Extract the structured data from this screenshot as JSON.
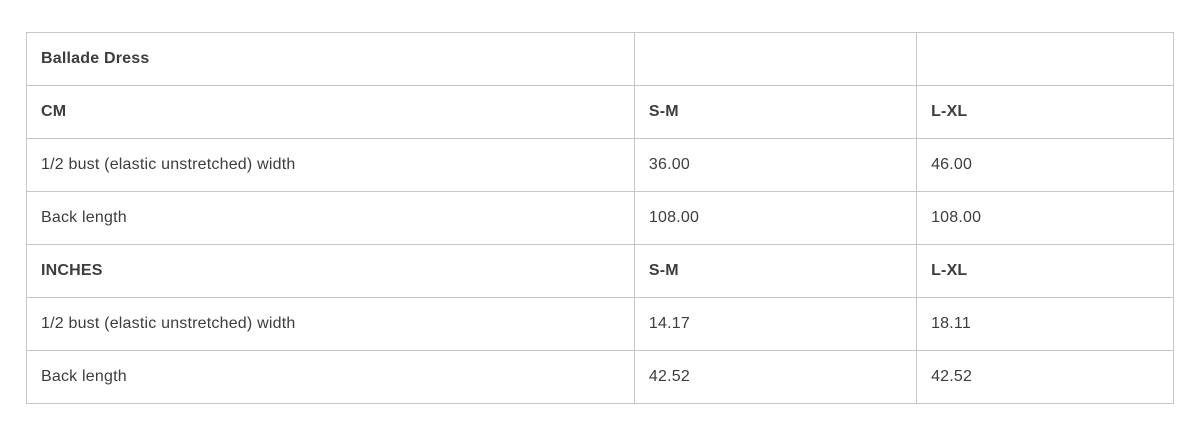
{
  "size_chart": {
    "title": "Ballade Dress",
    "sections": [
      {
        "unit": "CM",
        "size_headers": [
          "S-M",
          "L-XL"
        ],
        "rows": [
          {
            "label": "1/2 bust (elastic unstretched) width",
            "values": [
              "36.00",
              "46.00"
            ]
          },
          {
            "label": "Back length",
            "values": [
              "108.00",
              "108.00"
            ]
          }
        ]
      },
      {
        "unit": "INCHES",
        "size_headers": [
          "S-M",
          "L-XL"
        ],
        "rows": [
          {
            "label": "1/2 bust (elastic unstretched) width",
            "values": [
              "14.17",
              "18.11"
            ]
          },
          {
            "label": "Back length",
            "values": [
              "42.52",
              "42.52"
            ]
          }
        ]
      }
    ]
  },
  "colors": {
    "text": "#3d3d3d",
    "border": "#c6c6c6",
    "page_background": "#ffffff"
  }
}
